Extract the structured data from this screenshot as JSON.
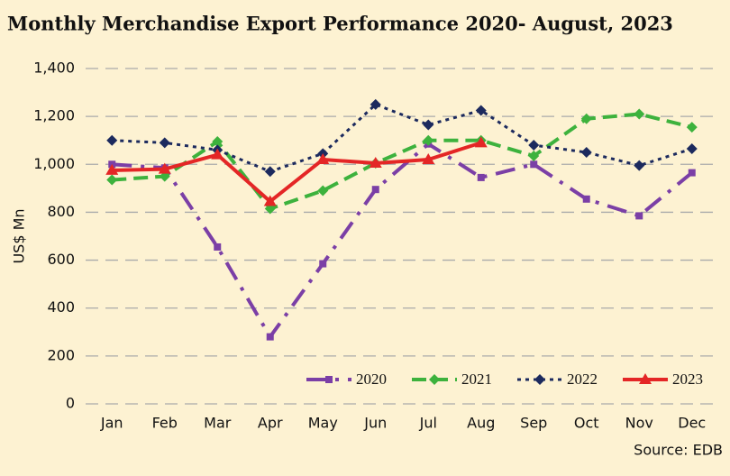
{
  "chart_data": {
    "type": "line",
    "title": "Monthly Merchandise Export Performance 2020- August, 2023",
    "y_label": "US$ Mn",
    "source": "Source: EDB",
    "categories": [
      "Jan",
      "Feb",
      "Mar",
      "Apr",
      "May",
      "Jun",
      "Jul",
      "Aug",
      "Sep",
      "Oct",
      "Nov",
      "Dec"
    ],
    "series": [
      {
        "name": "2020",
        "color": "#7b3fa6",
        "values": [
          1000,
          985,
          655,
          280,
          585,
          895,
          1085,
          945,
          1000,
          855,
          785,
          965
        ]
      },
      {
        "name": "2021",
        "color": "#3db23d",
        "values": [
          935,
          950,
          1095,
          815,
          890,
          1005,
          1100,
          1100,
          1035,
          1190,
          1210,
          1155
        ]
      },
      {
        "name": "2022",
        "color": "#1c2a5e",
        "values": [
          1100,
          1090,
          1060,
          970,
          1045,
          1250,
          1165,
          1225,
          1080,
          1050,
          995,
          1065
        ]
      },
      {
        "name": "2023",
        "color": "#e42626",
        "values": [
          975,
          980,
          1040,
          845,
          1020,
          1005,
          1020,
          1090,
          null,
          null,
          null,
          null
        ]
      }
    ],
    "ylim": [
      0,
      1400
    ],
    "yticks": [
      0,
      200,
      400,
      600,
      800,
      {
        "value": 1000,
        "label": "1,000"
      },
      {
        "value": 1200,
        "label": "1,200"
      },
      {
        "value": 1400,
        "label": "1,400"
      }
    ],
    "grid": true,
    "legend": "lower right"
  }
}
